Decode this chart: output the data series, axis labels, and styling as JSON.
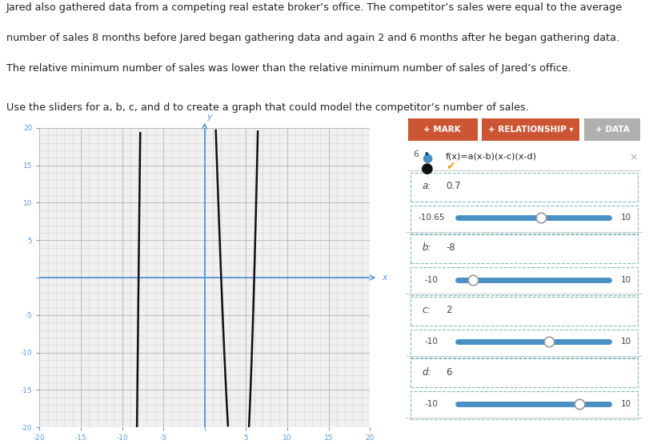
{
  "text_lines": [
    "Jared also gathered data from a competing real estate broker’s office. The competitor’s sales were equal to the average",
    "number of sales 8 months before Jared began gathering data and again 2 and 6 months after he began gathering data.",
    "The relative minimum number of sales was lower than the relative minimum number of sales of Jared’s office."
  ],
  "instruction_line": "Use the sliders for a, b, c, and d to create a graph that could model the competitor’s number of sales.",
  "graph": {
    "xlim": [
      -20,
      20
    ],
    "ylim": [
      -20,
      20
    ],
    "xticks": [
      -20,
      -15,
      -10,
      -5,
      0,
      5,
      10,
      15,
      20
    ],
    "yticks": [
      -20,
      -15,
      -10,
      -5,
      0,
      5,
      10,
      15,
      20
    ],
    "axis_color": "#5b9bd5",
    "tick_label_color": "#5b9bd5",
    "background_color": "#f0f0f0",
    "outer_color": "#e0e0e0",
    "curve_color": "#111111",
    "a": 0.7,
    "b": -8,
    "c": 2,
    "d": 6
  },
  "panel": {
    "bg_color": "#f5f5f5",
    "border_color": "#cccccc",
    "button_mark_color": "#cc5533",
    "button_relationship_color": "#cc5533",
    "button_data_color": "#b0b0b0",
    "slider_track_color": "#4a90c4",
    "slider_handle_color": "#ffffff",
    "check_color": "#e6a817",
    "params": [
      {
        "label": "a",
        "value": "0.7",
        "min_label": "-10.65",
        "min": -10.65,
        "max": 10,
        "current": 0.7
      },
      {
        "label": "b",
        "value": "-8",
        "min_label": "-10",
        "min": -10,
        "max": 10,
        "current": -8
      },
      {
        "label": "c",
        "value": "2",
        "min_label": "-10",
        "min": -10,
        "max": 10,
        "current": 2
      },
      {
        "label": "d",
        "value": "6",
        "min_label": "-10",
        "min": -10,
        "max": 10,
        "current": 6
      }
    ]
  },
  "outer_bg": "#ffffff",
  "text_font_size": 9.2
}
